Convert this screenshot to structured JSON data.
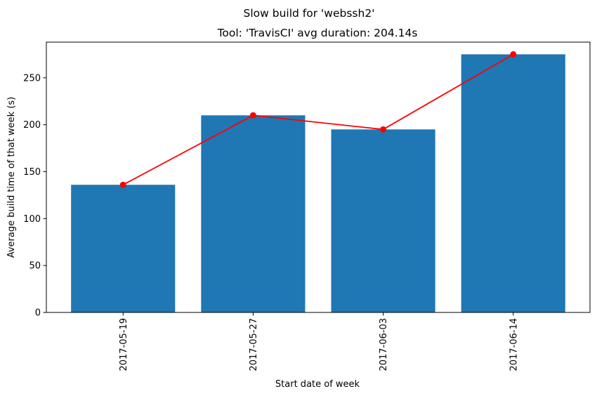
{
  "chart_data": {
    "type": "bar",
    "suptitle": "Slow build for 'webssh2'",
    "title": "Tool: 'TravisCI' avg duration: 204.14s",
    "xlabel": "Start date of week",
    "ylabel": "Average build time of that week (s)",
    "categories": [
      "2017-05-19",
      "2017-05-27",
      "2017-06-03",
      "2017-06-14"
    ],
    "values": [
      136,
      210,
      195,
      275
    ],
    "line_values": [
      136,
      210,
      195,
      275
    ],
    "ylim": [
      0,
      288
    ],
    "yticks": [
      0,
      50,
      100,
      150,
      200,
      250
    ],
    "bar_color": "#1f77b4",
    "line_color": "#ff0000",
    "grid": false
  }
}
